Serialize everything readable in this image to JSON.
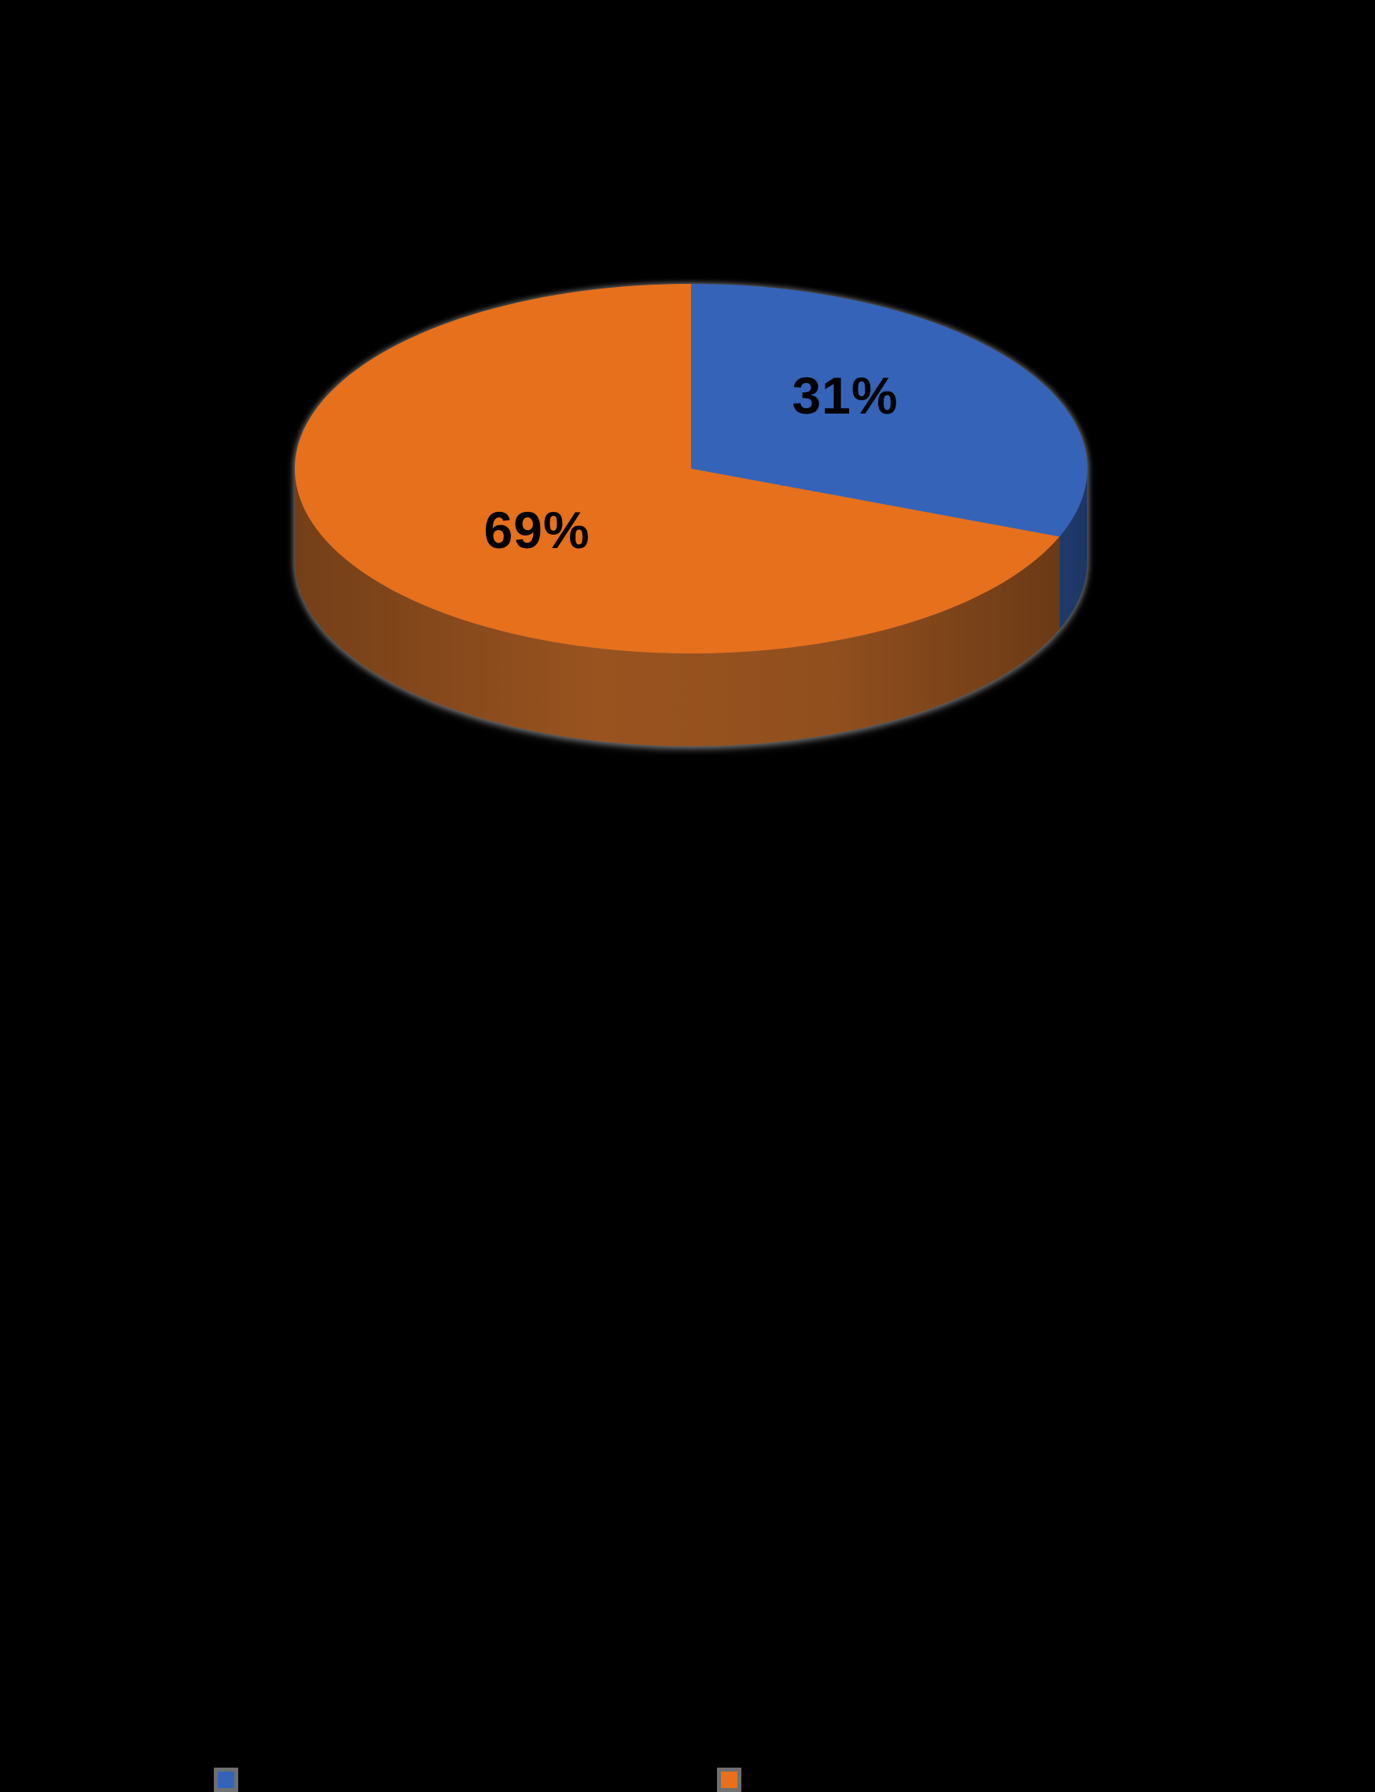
{
  "page": {
    "background_color": "#000000"
  },
  "chart_data": {
    "type": "pie",
    "style": "3d",
    "title": "",
    "direction": "clockwise",
    "start_angle_deg": 0,
    "data_label_color": "#000000",
    "legend_position": "bottom",
    "slices": [
      {
        "label": "",
        "value": 31,
        "data_label": "31%",
        "color": "#3563B8",
        "side_color": "#2A4C8C"
      },
      {
        "label": "",
        "value": 69,
        "data_label": "69%",
        "color": "#E6701C",
        "side_color": "#8E4D1D"
      }
    ]
  },
  "legend": {
    "swatch_border_color": "#6F6F6F",
    "items": [
      {
        "label": "",
        "swatch_color": "#3563B8"
      },
      {
        "label": "",
        "swatch_color": "#E6701C"
      }
    ]
  }
}
